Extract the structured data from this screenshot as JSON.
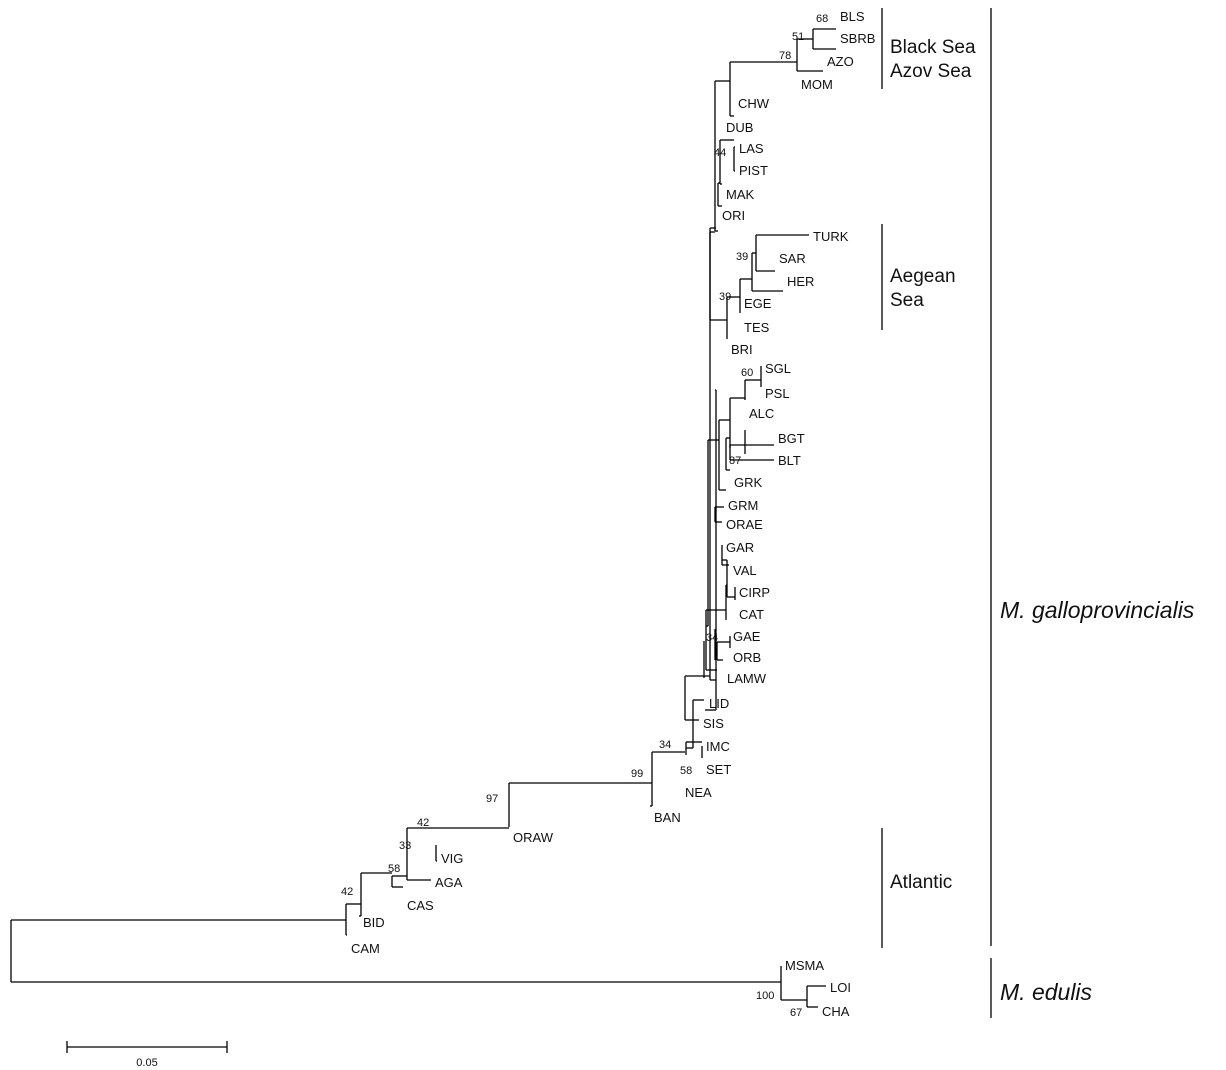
{
  "tree": {
    "taxa": [
      "BLS",
      "SBRB",
      "AZO",
      "MOM",
      "CHW",
      "DUB",
      "LAS",
      "PIST",
      "MAK",
      "ORI",
      "TURK",
      "SAR",
      "HER",
      "EGE",
      "TES",
      "BRI",
      "SGL",
      "PSL",
      "ALC",
      "BGT",
      "BLT",
      "GRK",
      "GRM",
      "ORAE",
      "GAR",
      "VAL",
      "CIRP",
      "CAT",
      "GAE",
      "ORB",
      "LAMW",
      "LID",
      "SIS",
      "IMC",
      "SET",
      "NEA",
      "BAN",
      "ORAW",
      "VIG",
      "AGA",
      "CAS",
      "BID",
      "CAM",
      "MSMA",
      "LOI",
      "CHA"
    ],
    "bootstrap_values": [
      "68",
      "51",
      "78",
      "44",
      "39",
      "39",
      "60",
      "87",
      "34",
      "34",
      "58",
      "99",
      "97",
      "42",
      "33",
      "58",
      "42",
      "100",
      "67"
    ]
  },
  "groups": {
    "black_sea_line1": "Black Sea",
    "black_sea_line2": "Azov Sea",
    "aegean_line1": "Aegean",
    "aegean_line2": "Sea",
    "atlantic": "Atlantic"
  },
  "species": {
    "galloprovincialis": "M. galloprovincialis",
    "edulis": "M. edulis"
  },
  "scale_bar": {
    "value": "0.05"
  }
}
